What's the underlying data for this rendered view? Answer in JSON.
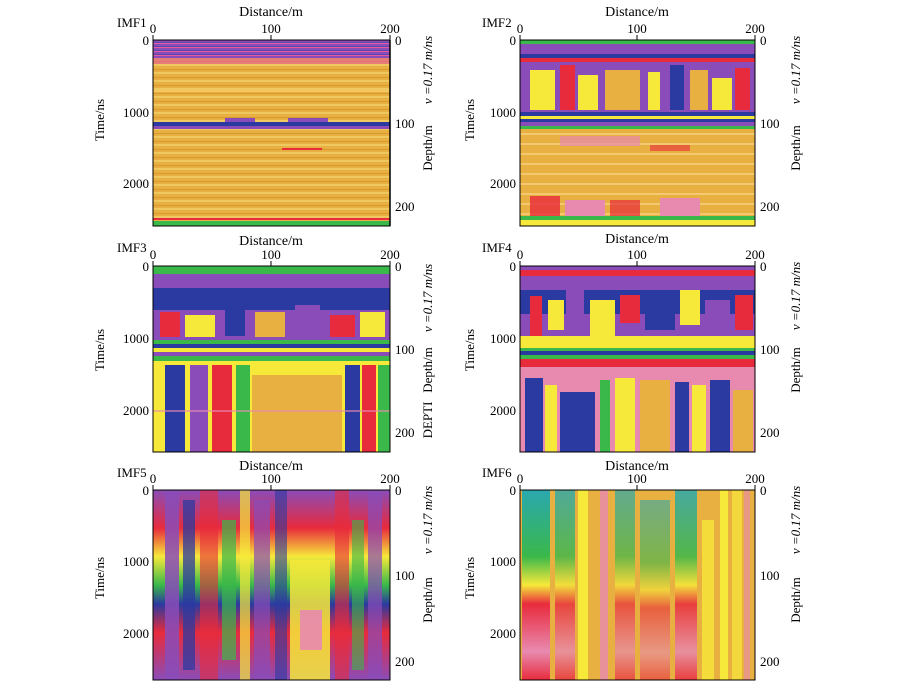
{
  "panels": [
    {
      "id": "IMF1",
      "label": "IMF1",
      "x_label": "Distance/m",
      "y_left_label": "Time/ns",
      "y_right_label": "Depth/m",
      "velocity_label": "v =0.17 m/ns",
      "x_ticks": [
        "0",
        "100",
        "200"
      ],
      "y_left_ticks": [
        "0",
        "1000",
        "2000"
      ],
      "y_right_ticks": [
        "0",
        "100",
        "200"
      ],
      "extra_label": ""
    },
    {
      "id": "IMF2",
      "label": "IMF2",
      "x_label": "Distance/m",
      "y_left_label": "Time/ns",
      "y_right_label": "Depth/m",
      "velocity_label": "v =0.17 m/ns",
      "x_ticks": [
        "0",
        "100",
        "200"
      ],
      "y_left_ticks": [
        "0",
        "1000",
        "2000"
      ],
      "y_right_ticks": [
        "0",
        "100",
        "200"
      ],
      "extra_label": ""
    },
    {
      "id": "IMF3",
      "label": "IMF3",
      "x_label": "Distance/m",
      "y_left_label": "Time/ns",
      "y_right_label": "Depth/m",
      "velocity_label": "v =0.17 m/ns",
      "x_ticks": [
        "0",
        "100",
        "200"
      ],
      "y_left_ticks": [
        "0",
        "1000",
        "2000"
      ],
      "y_right_ticks": [
        "0",
        "100",
        "200"
      ],
      "extra_label": "DEPTI"
    },
    {
      "id": "IMF4",
      "label": "IMF4",
      "x_label": "Distance/m",
      "y_left_label": "Time/ns",
      "y_right_label": "Depth/m",
      "velocity_label": "v =0.17 m/ns",
      "x_ticks": [
        "0",
        "100",
        "200"
      ],
      "y_left_ticks": [
        "0",
        "1000",
        "2000"
      ],
      "y_right_ticks": [
        "0",
        "100",
        "200"
      ],
      "extra_label": ""
    },
    {
      "id": "IMF5",
      "label": "IMF5",
      "x_label": "Distance/m",
      "y_left_label": "Time/ns",
      "y_right_label": "Depth/m",
      "velocity_label": "v =0.17 m/ns",
      "x_ticks": [
        "0",
        "100",
        "200"
      ],
      "y_left_ticks": [
        "0",
        "1000",
        "2000"
      ],
      "y_right_ticks": [
        "0",
        "100",
        "200"
      ],
      "extra_label": ""
    },
    {
      "id": "IMF6",
      "label": "IMF6",
      "x_label": "Distance/m",
      "y_left_label": "Time/ns",
      "y_right_label": "Depth/m",
      "velocity_label": "v =0.17 m/ns",
      "x_ticks": [
        "0",
        "100",
        "200"
      ],
      "y_left_ticks": [
        "0",
        "1000",
        "2000"
      ],
      "y_right_ticks": [
        "0",
        "100",
        "200"
      ],
      "extra_label": ""
    }
  ],
  "colors": {
    "background": "#e8b040",
    "purple": "#8a4cb8",
    "blue": "#2b3aa0",
    "red": "#e82b3c",
    "yellow": "#f6e93a",
    "green": "#3ab84a",
    "pink": "#e88ab0",
    "cyan": "#2aa8b0",
    "teal": "#1e8a7a"
  }
}
